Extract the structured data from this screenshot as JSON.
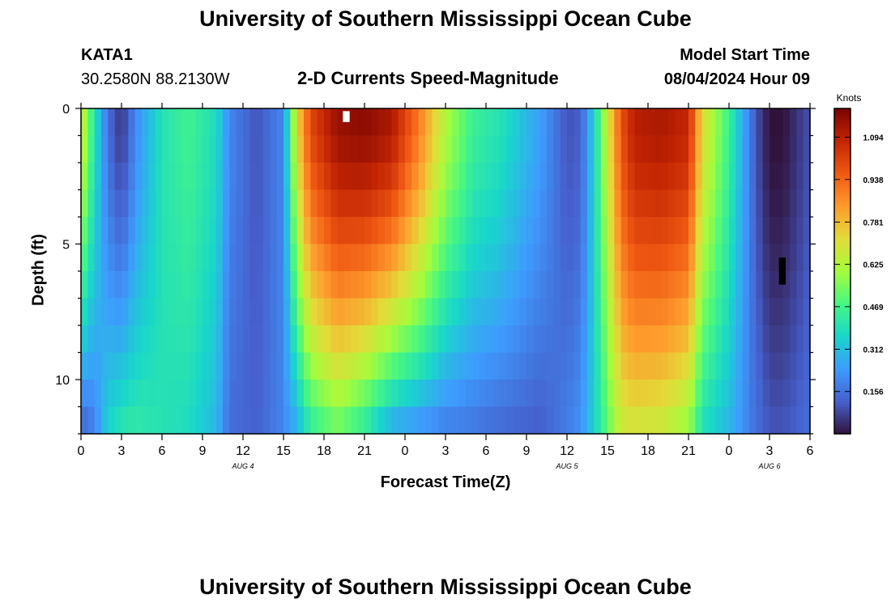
{
  "header": {
    "title": "University of Southern Mississippi Ocean Cube",
    "station": "KATA1",
    "coordinates": "30.2580N  88.2130W",
    "chart_title": "2-D Currents Speed-Magnitude",
    "model_start_label": "Model Start Time",
    "model_start_value": "08/04/2024 Hour 09"
  },
  "footer": {
    "title": "University of Southern Mississippi Ocean Cube"
  },
  "chart_data": {
    "type": "heatmap",
    "title": "2-D Currents Speed-Magnitude",
    "xlabel": "Forecast Time(Z)",
    "ylabel": "Depth (ft)",
    "ylim": [
      0,
      12
    ],
    "y_ticks": [
      0,
      5,
      10
    ],
    "y_tick_labels": [
      "0",
      "5",
      "10"
    ],
    "x_start_hour": 0,
    "x_end_hour": 54,
    "x_tick_hours": [
      0,
      3,
      6,
      9,
      12,
      15,
      18,
      21,
      24,
      27,
      30,
      33,
      36,
      39,
      42,
      45,
      48,
      51,
      54
    ],
    "x_tick_labels": [
      "0",
      "3",
      "6",
      "9",
      "12",
      "15",
      "18",
      "21",
      "0",
      "3",
      "6",
      "9",
      "12",
      "15",
      "18",
      "21",
      "0",
      "3",
      "6"
    ],
    "date_labels": [
      {
        "hour": 12,
        "text": "AUG 4"
      },
      {
        "hour": 36,
        "text": "AUG 5"
      },
      {
        "hour": 51,
        "text": "AUG 6"
      }
    ],
    "colorbar": {
      "unit": "Knots",
      "min": 0.0,
      "max": 1.2,
      "ticks": [
        0.156,
        0.312,
        0.469,
        0.625,
        0.781,
        0.938,
        1.094
      ],
      "tick_labels": [
        "0.156",
        "0.312",
        "0.469",
        "0.625",
        "0.781",
        "0.938",
        "1.094"
      ]
    },
    "depth_levels": 12,
    "knot_hours": [
      0,
      1,
      2,
      3,
      4,
      6,
      8,
      10,
      11,
      13,
      15,
      16,
      17,
      19,
      21,
      23,
      25,
      27,
      29,
      31,
      34,
      36,
      37,
      38,
      40,
      41,
      43,
      45,
      46,
      48,
      50,
      51,
      52,
      53,
      54
    ],
    "surface_knots": [
      0.7,
      0.4,
      0.15,
      0.05,
      0.2,
      0.4,
      0.46,
      0.38,
      0.2,
      0.1,
      0.2,
      0.72,
      1.0,
      1.15,
      1.17,
      1.12,
      0.9,
      0.62,
      0.45,
      0.4,
      0.25,
      0.1,
      0.12,
      0.35,
      0.98,
      1.1,
      1.12,
      1.08,
      0.72,
      0.45,
      0.1,
      0.0,
      0.0,
      0.05,
      0.1
    ],
    "bottom_knots": [
      0.15,
      0.2,
      0.35,
      0.4,
      0.42,
      0.4,
      0.38,
      0.3,
      0.15,
      0.12,
      0.2,
      0.3,
      0.45,
      0.55,
      0.45,
      0.3,
      0.25,
      0.2,
      0.18,
      0.15,
      0.12,
      0.18,
      0.22,
      0.35,
      0.68,
      0.7,
      0.68,
      0.6,
      0.4,
      0.3,
      0.15,
      0.1,
      0.1,
      0.12,
      0.15
    ],
    "missing_cells": [
      {
        "hour_start": 19.4,
        "hour_end": 19.9,
        "depth_start": 0.1,
        "depth_end": 0.5,
        "color": "#ffffff"
      },
      {
        "hour_start": 51.7,
        "hour_end": 52.2,
        "depth_start": 5.5,
        "depth_end": 6.5,
        "color": "#000000"
      }
    ]
  }
}
